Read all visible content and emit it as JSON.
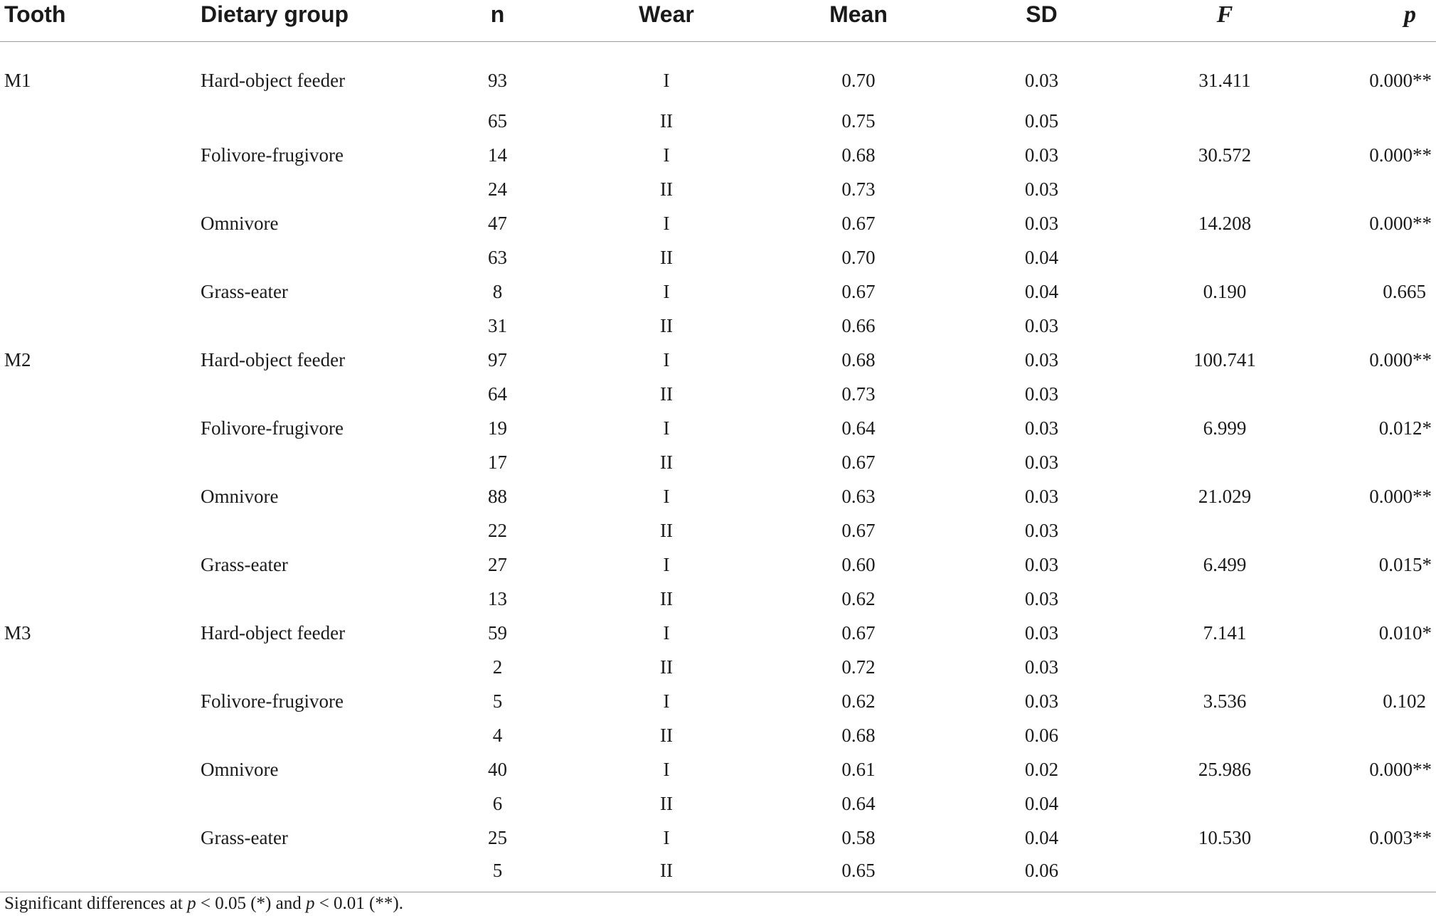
{
  "table": {
    "headers": {
      "tooth": "Tooth",
      "dietary_group": "Dietary group",
      "n": "n",
      "wear": "Wear",
      "mean": "Mean",
      "sd": "SD",
      "f": "F",
      "p": "p"
    },
    "rows": [
      {
        "tooth": "M1",
        "group": "Hard-object feeder",
        "n": "93",
        "wear": "I",
        "mean": "0.70",
        "sd": "0.03",
        "f": "31.411",
        "p": "0.000**"
      },
      {
        "tooth": "",
        "group": "",
        "n": "65",
        "wear": "II",
        "mean": "0.75",
        "sd": "0.05",
        "f": "",
        "p": ""
      },
      {
        "tooth": "",
        "group": "Folivore-frugivore",
        "n": "14",
        "wear": "I",
        "mean": "0.68",
        "sd": "0.03",
        "f": "30.572",
        "p": "0.000**"
      },
      {
        "tooth": "",
        "group": "",
        "n": "24",
        "wear": "II",
        "mean": "0.73",
        "sd": "0.03",
        "f": "",
        "p": ""
      },
      {
        "tooth": "",
        "group": "Omnivore",
        "n": "47",
        "wear": "I",
        "mean": "0.67",
        "sd": "0.03",
        "f": "14.208",
        "p": "0.000**"
      },
      {
        "tooth": "",
        "group": "",
        "n": "63",
        "wear": "II",
        "mean": "0.70",
        "sd": "0.04",
        "f": "",
        "p": ""
      },
      {
        "tooth": "",
        "group": "Grass-eater",
        "n": "8",
        "wear": "I",
        "mean": "0.67",
        "sd": "0.04",
        "f": "0.190",
        "p": "0.665"
      },
      {
        "tooth": "",
        "group": "",
        "n": "31",
        "wear": "II",
        "mean": "0.66",
        "sd": "0.03",
        "f": "",
        "p": ""
      },
      {
        "tooth": "M2",
        "group": "Hard-object feeder",
        "n": "97",
        "wear": "I",
        "mean": "0.68",
        "sd": "0.03",
        "f": "100.741",
        "p": "0.000**"
      },
      {
        "tooth": "",
        "group": "",
        "n": "64",
        "wear": "II",
        "mean": "0.73",
        "sd": "0.03",
        "f": "",
        "p": ""
      },
      {
        "tooth": "",
        "group": "Folivore-frugivore",
        "n": "19",
        "wear": "I",
        "mean": "0.64",
        "sd": "0.03",
        "f": "6.999",
        "p": "0.012*"
      },
      {
        "tooth": "",
        "group": "",
        "n": "17",
        "wear": "II",
        "mean": "0.67",
        "sd": "0.03",
        "f": "",
        "p": ""
      },
      {
        "tooth": "",
        "group": "Omnivore",
        "n": "88",
        "wear": "I",
        "mean": "0.63",
        "sd": "0.03",
        "f": "21.029",
        "p": "0.000**"
      },
      {
        "tooth": "",
        "group": "",
        "n": "22",
        "wear": "II",
        "mean": "0.67",
        "sd": "0.03",
        "f": "",
        "p": ""
      },
      {
        "tooth": "",
        "group": "Grass-eater",
        "n": "27",
        "wear": "I",
        "mean": "0.60",
        "sd": "0.03",
        "f": "6.499",
        "p": "0.015*"
      },
      {
        "tooth": "",
        "group": "",
        "n": "13",
        "wear": "II",
        "mean": "0.62",
        "sd": "0.03",
        "f": "",
        "p": ""
      },
      {
        "tooth": "M3",
        "group": "Hard-object feeder",
        "n": "59",
        "wear": "I",
        "mean": "0.67",
        "sd": "0.03",
        "f": "7.141",
        "p": "0.010*"
      },
      {
        "tooth": "",
        "group": "",
        "n": "2",
        "wear": "II",
        "mean": "0.72",
        "sd": "0.03",
        "f": "",
        "p": ""
      },
      {
        "tooth": "",
        "group": "Folivore-frugivore",
        "n": "5",
        "wear": "I",
        "mean": "0.62",
        "sd": "0.03",
        "f": "3.536",
        "p": "0.102"
      },
      {
        "tooth": "",
        "group": "",
        "n": "4",
        "wear": "II",
        "mean": "0.68",
        "sd": "0.06",
        "f": "",
        "p": ""
      },
      {
        "tooth": "",
        "group": "Omnivore",
        "n": "40",
        "wear": "I",
        "mean": "0.61",
        "sd": "0.02",
        "f": "25.986",
        "p": "0.000**"
      },
      {
        "tooth": "",
        "group": "",
        "n": "6",
        "wear": "II",
        "mean": "0.64",
        "sd": "0.04",
        "f": "",
        "p": ""
      },
      {
        "tooth": "",
        "group": "Grass-eater",
        "n": "25",
        "wear": "I",
        "mean": "0.58",
        "sd": "0.04",
        "f": "10.530",
        "p": "0.003**"
      },
      {
        "tooth": "",
        "group": "",
        "n": "5",
        "wear": "II",
        "mean": "0.65",
        "sd": "0.06",
        "f": "",
        "p": ""
      }
    ]
  },
  "footnote": {
    "prefix": "Significant differences at ",
    "p1_var": "p",
    "p1_rest": " < 0.05 (*) and ",
    "p2_var": "p",
    "p2_rest": " < 0.01 (**)."
  }
}
